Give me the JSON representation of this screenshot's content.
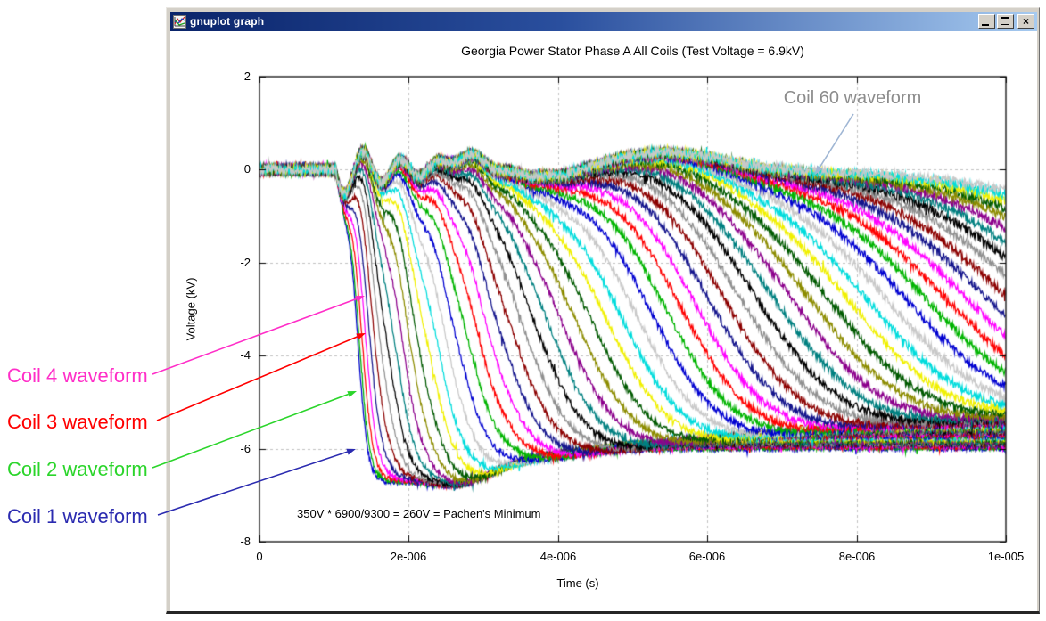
{
  "window": {
    "title": "gnuplot graph",
    "buttons": {
      "minimize": "minimize",
      "maximize": "maximize",
      "close": "close",
      "close_glyph": "×"
    }
  },
  "chart_data": {
    "type": "line",
    "title": "Georgia Power Stator Phase A All Coils (Test Voltage = 6.9kV)",
    "xlabel": "Time (s)",
    "ylabel": "Voltage (kV)",
    "xlim": [
      0,
      1e-05
    ],
    "ylim": [
      -8,
      2
    ],
    "xticks": {
      "values": [
        0,
        2e-06,
        4e-06,
        6e-06,
        8e-06,
        1e-05
      ],
      "labels": [
        "0",
        "2e-006",
        "4e-006",
        "6e-006",
        "8e-006",
        "1e-005"
      ]
    },
    "yticks": {
      "values": [
        2,
        0,
        -2,
        -4,
        -6,
        -8
      ],
      "labels": [
        "2",
        "0",
        "-2",
        "-4",
        "-6",
        "-8"
      ]
    },
    "grid": {
      "style": "dashed",
      "color": "#c0c0c0"
    },
    "num_series": 60,
    "series_name_pattern": "Coil {n}",
    "palette_cycle": [
      "#0000d0",
      "#00b400",
      "#ff0000",
      "#ff00ff",
      "#14148c",
      "#8c0000",
      "#909090",
      "#000000",
      "#008080",
      "#8c008c",
      "#8c8c00",
      "#005a00",
      "#f0f000",
      "#00dcdc",
      "#c8c8c8"
    ],
    "waveform_model": {
      "description": "60 staggered stator-coil surge waveforms: each coil sits at 0 kV, rings at ~1.1e-6 s, then drops with a delayed sigmoid toward ~-6.9 kV (bottom envelope ~-7 kV near 2.7e-6 s) and relaxes to ~-5.5/-6 kV; later coils drop progressively later and slower, so Coil 60 only reaches ~-0.4 kV by 1e-5 s. Top bundle shows a broad +0.4 kV hump near 5.45e-6 s.",
      "t_range_us": [
        0,
        10
      ],
      "drop_mid_us": {
        "base": 1.3,
        "span": 11.5,
        "exp": 1.6
      },
      "drop_width_us": {
        "base": 0.07,
        "span": 1.05,
        "exp": 1.3
      },
      "depth_kV": {
        "base": -6.85,
        "span": 1.05
      },
      "relax_kV": 0.85,
      "relax_delay_us": 1.6,
      "relax_width_us": 0.7,
      "ring": {
        "t0_us": 1.02,
        "amp_kV": 0.62,
        "period_us": 0.5,
        "decay_us": 0.8
      },
      "humps": [
        {
          "t_us": 5.45,
          "amp_kV": 0.38,
          "width_us": 1.05
        },
        {
          "t_us": 2.78,
          "amp_kV": 0.3,
          "width_us": 0.33
        },
        {
          "t_us": 3.9,
          "amp_kV": -0.18,
          "width_us": 0.6
        }
      ],
      "bottom_wobble": {
        "t_us": 2.7,
        "amp_kV": -0.3,
        "width_us": 0.55
      },
      "noise_kV": {
        "base": 0.05,
        "span": 0.05
      }
    },
    "observed_anchors": {
      "right_edge_kV": {
        "Coil 1": -5.9,
        "Coil 30": -5.5,
        "Coil 50": -3.5,
        "Coil 55": -1.9,
        "Coil 60": -0.35
      },
      "drop_onset_s": {
        "Coil 1": 1.2e-06,
        "Coil 2": 1.3e-06,
        "Coil 3": 1.4e-06,
        "Coil 4": 1.5e-06
      },
      "bottom_envelope_min_kV": -7.0,
      "top_hump_peak_kV": 0.5
    }
  },
  "annotations": {
    "pachen_note": "350V * 6900/9300 = 260V = Pachen's Minimum",
    "coil60": {
      "label": "Coil 60 waveform",
      "color": "#8c8c8c",
      "arrow_color": "#9fb6d4"
    },
    "callouts": [
      {
        "label": "Coil 4 waveform",
        "color": "#ff2ec8"
      },
      {
        "label": "Coil 3 waveform",
        "color": "#ff0000"
      },
      {
        "label": "Coil 2 waveform",
        "color": "#2bd52b"
      },
      {
        "label": "Coil 1 waveform",
        "color": "#2b2bb0"
      }
    ]
  }
}
